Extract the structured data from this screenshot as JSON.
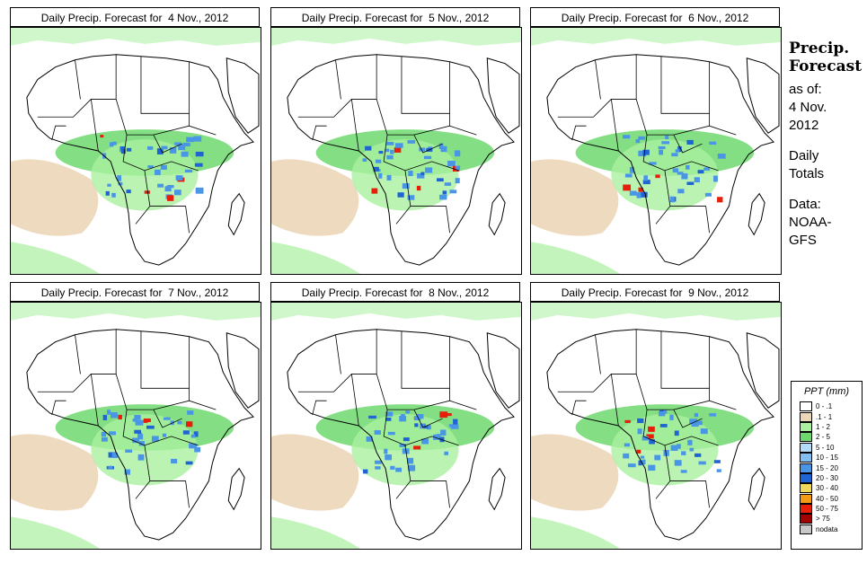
{
  "panels": [
    {
      "title": "Daily Precip. Forecast for  4 Nov., 2012"
    },
    {
      "title": "Daily Precip. Forecast for  5 Nov., 2012"
    },
    {
      "title": "Daily Precip. Forecast for  6 Nov., 2012"
    },
    {
      "title": "Daily Precip. Forecast for  7 Nov., 2012"
    },
    {
      "title": "Daily Precip. Forecast for  8 Nov., 2012"
    },
    {
      "title": "Daily Precip. Forecast for  9 Nov., 2012"
    }
  ],
  "sidebar": {
    "title_line1": "Precip.",
    "title_line2": "Forecast",
    "asof_line1": "as of:",
    "asof_line2": "4 Nov.",
    "asof_line3": "2012",
    "totals_line1": "Daily",
    "totals_line2": "Totals",
    "data_line1": "Data:",
    "data_line2": "NOAA-",
    "data_line3": "GFS"
  },
  "legend": {
    "title": "PPT (mm)",
    "items": [
      {
        "label": "0 - .1",
        "color": "#ffffff"
      },
      {
        "label": ".1 - 1",
        "color": "#ecd6b8"
      },
      {
        "label": "1 - 2",
        "color": "#aaf0a0"
      },
      {
        "label": "2 - 5",
        "color": "#6ed86e"
      },
      {
        "label": "5 - 10",
        "color": "#b4dcf8"
      },
      {
        "label": "10 - 15",
        "color": "#82bef0"
      },
      {
        "label": "15 - 20",
        "color": "#4a96e6"
      },
      {
        "label": "20 - 30",
        "color": "#1e64d2"
      },
      {
        "label": "30 - 40",
        "color": "#f0d75a"
      },
      {
        "label": "40 - 50",
        "color": "#f59a14"
      },
      {
        "label": "50 - 75",
        "color": "#e61e0a"
      },
      {
        "label": "> 75",
        "color": "#a00000"
      },
      {
        "label": "nodata",
        "color": "#c8c8c8"
      }
    ]
  }
}
